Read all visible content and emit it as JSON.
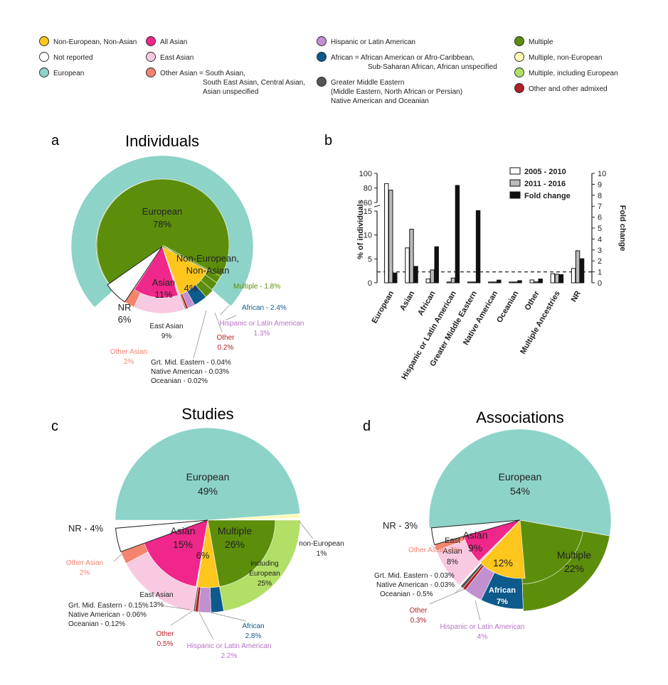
{
  "legend": {
    "columns": [
      [
        {
          "label": "Non-European, Non-Asian",
          "color": "#FFC61E",
          "icon": "circle"
        },
        {
          "label": "Not reported",
          "color": "#FFFFFF",
          "icon": "circle"
        },
        {
          "label": "European",
          "color": "#8DD3C7",
          "icon": "circle"
        }
      ],
      [
        {
          "label": "All Asian",
          "color": "#F0278A",
          "icon": "circle"
        },
        {
          "label": "East Asian",
          "color": "#F8C9E0",
          "icon": "circle"
        },
        {
          "label": "Other Asian = South Asian,",
          "extra": [
            "South East Asian, Central Asian,",
            "Asian unspecified"
          ],
          "color": "#F4846E",
          "icon": "circle"
        }
      ],
      [
        {
          "label": "Hispanic or Latin American",
          "color": "#C190CF",
          "icon": "circle"
        },
        {
          "label": "African  = African American or Afro-Caribbean,",
          "extra": [
            "Sub-Saharan African, African unspecified"
          ],
          "color": "#0D5A8C",
          "icon": "circle"
        },
        {
          "label": "Greater Middle Eastern",
          "extra": [
            "(Middle Eastern, North African or Persian)",
            "Native American and Oceanian"
          ],
          "color": "#555555",
          "icon": "circle"
        }
      ],
      [
        {
          "label": "Multiple",
          "color": "#5C8E0B",
          "icon": "circle"
        },
        {
          "label": "Multiple, non-European",
          "color": "#FFFAB4",
          "icon": "circle"
        },
        {
          "label": "Multiple, including European",
          "color": "#B2DF66",
          "icon": "circle"
        },
        {
          "label": "Other and other admixed",
          "color": "#B21F24",
          "icon": "circle"
        }
      ]
    ]
  },
  "panels": {
    "a": {
      "letter": "a",
      "title": "Individuals"
    },
    "b": {
      "letter": "b"
    },
    "c": {
      "letter": "c",
      "title": "Studies"
    },
    "d": {
      "letter": "d",
      "title": "Associations"
    }
  },
  "chart_data": [
    {
      "id": "a",
      "type": "pie",
      "title": "Individuals",
      "slices": [
        {
          "name": "European",
          "value": 78,
          "color": "#8DD3C7",
          "labels": [
            "European",
            "78%"
          ]
        },
        {
          "name": "Non-European, Non-Asian",
          "value": 4,
          "color": "#FFC61E",
          "labels": [
            "Non-European,",
            "Non-Asian",
            "4%"
          ]
        },
        {
          "name": "Multiple",
          "value": 1.8,
          "color": "#5C8E0B",
          "labels": [
            "Multiple - 1.8%"
          ]
        },
        {
          "name": "African",
          "value": 2.4,
          "color": "#0D5A8C",
          "labels": [
            "African - 2.4%"
          ]
        },
        {
          "name": "Hispanic or Latin American",
          "value": 1.3,
          "color": "#C190CF",
          "labels": [
            "Hispanic or Latin American",
            "1.3%"
          ]
        },
        {
          "name": "Other",
          "value": 0.2,
          "color": "#B21F24",
          "labels": [
            "Other",
            "0.2%"
          ]
        },
        {
          "name": "Grt. Mid. Eastern",
          "value": 0.04,
          "color": "#555555",
          "labels": [
            "Grt. Mid. Eastern  - 0.04%"
          ]
        },
        {
          "name": "Native American",
          "value": 0.03,
          "color": "#555555",
          "labels": [
            "Native American - 0.03%"
          ]
        },
        {
          "name": "Oceanian",
          "value": 0.02,
          "color": "#555555",
          "labels": [
            "Oceanian - 0.02%"
          ]
        },
        {
          "name": "East Asian",
          "value": 9,
          "color": "#F8C9E0",
          "labels": [
            "East Asian",
            "9%"
          ]
        },
        {
          "name": "Other Asian",
          "value": 2,
          "color": "#F4846E",
          "labels": [
            "Other Asian",
            "2%"
          ]
        },
        {
          "name": "Asian",
          "value": 11,
          "color": "#F0278A",
          "labels": [
            "Asian",
            "11%"
          ]
        },
        {
          "name": "NR",
          "value": 6,
          "color": "#FFFFFF",
          "labels": [
            "NR",
            "6%"
          ]
        }
      ]
    },
    {
      "id": "b",
      "type": "bar",
      "categories": [
        "European",
        "Asian",
        "African",
        "Hispanic or Latin American",
        "Greater Middle Eastern",
        "Native American",
        "Oceanian",
        "Other",
        "Multiple Ancestries",
        "NR"
      ],
      "ylabel": "% of individuals",
      "y2label": "Fold change",
      "yticks": [
        0,
        5,
        10,
        15,
        60,
        80,
        100
      ],
      "y2ticks": [
        0,
        1,
        2,
        3,
        4,
        5,
        6,
        7,
        8,
        9,
        10
      ],
      "ylim": [
        0,
        100
      ],
      "y2lim": [
        0,
        10
      ],
      "reference_line": 1,
      "series": [
        {
          "name": "2005 - 2010",
          "axis": "left",
          "color": "#FFFFFF",
          "values": [
            86,
            7.3,
            0.8,
            0.1,
            0.02,
            0.02,
            0.02,
            0.6,
            1.9,
            3.0
          ]
        },
        {
          "name": "2011 - 2016",
          "axis": "left",
          "color": "#BBBBBB",
          "values": [
            77,
            11.2,
            2.7,
            1.0,
            0.1,
            0.05,
            0.04,
            0.2,
            1.8,
            6.7
          ]
        },
        {
          "name": "Fold change",
          "axis": "right",
          "color": "#111111",
          "values": [
            0.9,
            1.5,
            3.3,
            8.9,
            6.6,
            0.25,
            0.2,
            0.35,
            0.75,
            2.2
          ]
        }
      ]
    },
    {
      "id": "c",
      "type": "pie",
      "title": "Studies",
      "slices": [
        {
          "name": "European",
          "value": 49,
          "color": "#8DD3C7",
          "labels": [
            "European",
            "49%"
          ]
        },
        {
          "name": "non-European",
          "value": 1,
          "color": "#FFFAB4",
          "labels": [
            "non-European",
            "1%"
          ]
        },
        {
          "name": "including European",
          "value": 25,
          "color": "#B2DF66",
          "labels": [
            "including",
            "European",
            "25%"
          ]
        },
        {
          "name": "African",
          "value": 2.8,
          "color": "#0D5A8C",
          "labels": [
            "African",
            "2.8%"
          ]
        },
        {
          "name": "Hispanic or Latin American",
          "value": 2.2,
          "color": "#C190CF",
          "labels": [
            "Hispanic or Latin American",
            "2.2%"
          ]
        },
        {
          "name": "Other",
          "value": 0.5,
          "color": "#B21F24",
          "labels": [
            "Other",
            "0.5%"
          ]
        },
        {
          "name": "Grt. Mid. Eastern",
          "value": 0.15,
          "color": "#555555",
          "labels": [
            "Grt. Mid. Eastern - 0.15%"
          ]
        },
        {
          "name": "Native American",
          "value": 0.06,
          "color": "#555555",
          "labels": [
            "Native American - 0.06%"
          ]
        },
        {
          "name": "Oceanian",
          "value": 0.12,
          "color": "#555555",
          "labels": [
            "Oceanian - 0.12%"
          ]
        },
        {
          "name": "East Asian",
          "value": 13,
          "color": "#F8C9E0",
          "labels": [
            "East Asian",
            "13%"
          ]
        },
        {
          "name": "Other Asian",
          "value": 2,
          "color": "#F4846E",
          "labels": [
            "Other Asian",
            "2%"
          ]
        },
        {
          "name": "Asian",
          "value": 15,
          "color": "#F0278A",
          "labels": [
            "Asian",
            "15%"
          ]
        },
        {
          "name": "Multiple",
          "value": 26,
          "color": "#5C8E0B",
          "labels": [
            "Multiple",
            "26%"
          ]
        },
        {
          "name": "Non-European, Non-Asian",
          "value": 6,
          "color": "#FFC61E",
          "labels": [
            "6%"
          ]
        },
        {
          "name": "NR",
          "value": 4,
          "color": "#FFFFFF",
          "labels": [
            "NR - 4%"
          ]
        }
      ]
    },
    {
      "id": "d",
      "type": "pie",
      "title": "Associations",
      "slices": [
        {
          "name": "European",
          "value": 54,
          "color": "#8DD3C7",
          "labels": [
            "European",
            "54%"
          ]
        },
        {
          "name": "Multiple",
          "value": 22,
          "color": "#5C8E0B",
          "labels": [
            "Multiple",
            "22%"
          ]
        },
        {
          "name": "African",
          "value": 7,
          "color": "#0D5A8C",
          "labels": [
            "African",
            "7%"
          ]
        },
        {
          "name": "Hispanic or Latin American",
          "value": 4,
          "color": "#C190CF",
          "labels": [
            "Hispanic or Latin American",
            "4%"
          ]
        },
        {
          "name": "Other",
          "value": 0.3,
          "color": "#B21F24",
          "labels": [
            "Other",
            "0.3%"
          ]
        },
        {
          "name": "Grt. Mid. Eastern",
          "value": 0.03,
          "color": "#555555",
          "labels": [
            "Grt. Mid. Eastern  - 0.03%"
          ]
        },
        {
          "name": "Native American",
          "value": 0.03,
          "color": "#555555",
          "labels": [
            "Native American - 0.03%"
          ]
        },
        {
          "name": "Oceanian",
          "value": 0.5,
          "color": "#555555",
          "labels": [
            "Oceanian - 0.5%"
          ]
        },
        {
          "name": "East Asian",
          "value": 8,
          "color": "#F8C9E0",
          "labels": [
            "East",
            "Asian",
            "8%"
          ]
        },
        {
          "name": "Other Asian",
          "value": 1,
          "color": "#F4846E",
          "labels": [
            "Other Asian -1%"
          ]
        },
        {
          "name": "Asian",
          "value": 9,
          "color": "#F0278A",
          "labels": [
            "Asian",
            "9%"
          ]
        },
        {
          "name": "Non-European, Non-Asian",
          "value": 12,
          "color": "#FFC61E",
          "labels": [
            "12%"
          ]
        },
        {
          "name": "NR",
          "value": 3,
          "color": "#FFFFFF",
          "labels": [
            "NR - 3%"
          ]
        }
      ]
    }
  ]
}
